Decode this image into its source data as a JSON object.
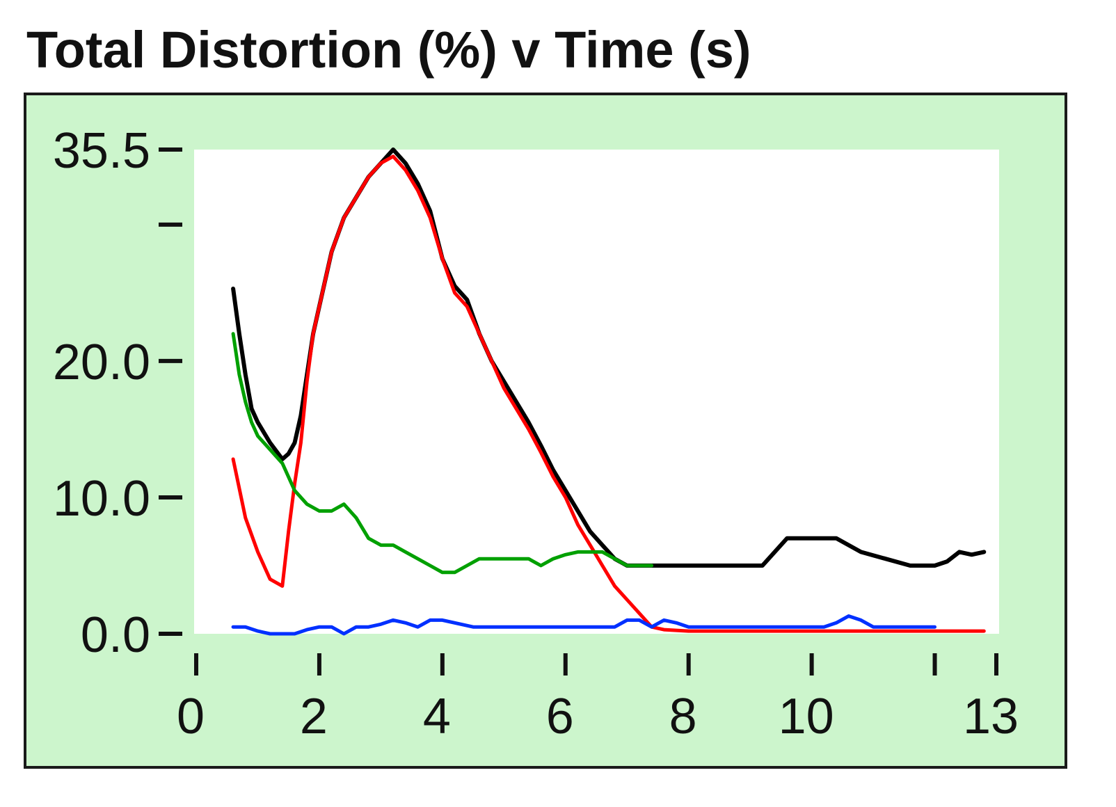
{
  "colors": {
    "panel_background": "#ccf5cc",
    "plot_background": "#ffffff",
    "axis": "#111111"
  },
  "chart_data": {
    "type": "line",
    "title": "Total Distortion (%) v Time (s)",
    "xlabel": "",
    "ylabel": "",
    "xlim": [
      0,
      13
    ],
    "ylim": [
      0,
      35.5
    ],
    "grid": false,
    "legend": "none",
    "x_ticks": [
      0,
      2,
      4,
      6,
      8,
      10,
      13
    ],
    "x_tick_labels": [
      "0",
      "2",
      "4",
      "6",
      "8",
      "10",
      "13"
    ],
    "x_minor_ticks": [
      12
    ],
    "y_ticks": [
      0,
      10,
      20,
      35.5
    ],
    "y_tick_labels": [
      "0.0",
      "10.0",
      "20.0",
      "35.5"
    ],
    "y_minor_ticks": [
      30
    ],
    "series": [
      {
        "color": "#000000",
        "x": [
          0.6,
          0.7,
          0.8,
          0.9,
          1.0,
          1.2,
          1.4,
          1.5,
          1.6,
          1.7,
          1.8,
          1.9,
          2.0,
          2.2,
          2.4,
          2.6,
          2.8,
          3.0,
          3.2,
          3.4,
          3.6,
          3.8,
          4.0,
          4.2,
          4.4,
          4.6,
          4.8,
          5.0,
          5.2,
          5.4,
          5.6,
          5.8,
          6.0,
          6.2,
          6.4,
          6.6,
          6.8,
          7.0,
          7.2,
          7.4,
          7.6,
          8.0,
          8.4,
          8.8,
          9.2,
          9.6,
          10.0,
          10.4,
          10.8,
          11.2,
          11.6,
          12.0,
          12.2,
          12.4,
          12.6,
          12.8
        ],
        "y": [
          25.3,
          22.0,
          19.0,
          16.5,
          15.5,
          14.0,
          12.8,
          13.2,
          14.0,
          16.0,
          19.0,
          22.0,
          24.0,
          28.0,
          30.5,
          32.0,
          33.5,
          34.5,
          35.5,
          34.5,
          33.0,
          31.0,
          27.5,
          25.5,
          24.5,
          22.0,
          20.0,
          18.5,
          17.0,
          15.5,
          13.8,
          12.0,
          10.5,
          9.0,
          7.5,
          6.5,
          5.5,
          5.0,
          5.0,
          5.0,
          5.0,
          5.0,
          5.0,
          5.0,
          5.0,
          7.0,
          7.0,
          7.0,
          6.0,
          5.5,
          5.0,
          5.0,
          5.3,
          6.0,
          5.8,
          6.0
        ]
      },
      {
        "color": "#ff0000",
        "x": [
          0.6,
          0.8,
          1.0,
          1.2,
          1.4,
          1.5,
          1.6,
          1.7,
          1.8,
          1.9,
          2.0,
          2.2,
          2.4,
          2.6,
          2.8,
          3.0,
          3.2,
          3.4,
          3.6,
          3.8,
          4.0,
          4.2,
          4.4,
          4.6,
          4.8,
          5.0,
          5.2,
          5.4,
          5.6,
          5.8,
          6.0,
          6.2,
          6.4,
          6.6,
          6.8,
          7.0,
          7.2,
          7.4,
          7.6,
          8.0,
          9.0,
          10.0,
          11.0,
          12.0,
          12.8
        ],
        "y": [
          12.8,
          8.5,
          6.0,
          4.0,
          3.5,
          7.5,
          11.0,
          14.0,
          18.5,
          22.0,
          24.0,
          28.0,
          30.5,
          32.0,
          33.5,
          34.5,
          35.0,
          34.0,
          32.5,
          30.5,
          27.5,
          25.0,
          24.0,
          22.0,
          20.0,
          18.0,
          16.5,
          15.0,
          13.3,
          11.5,
          10.0,
          8.0,
          6.5,
          5.0,
          3.5,
          2.5,
          1.5,
          0.5,
          0.3,
          0.2,
          0.2,
          0.2,
          0.2,
          0.2,
          0.2
        ]
      },
      {
        "color": "#00a000",
        "x": [
          0.6,
          0.7,
          0.8,
          0.9,
          1.0,
          1.2,
          1.4,
          1.6,
          1.8,
          2.0,
          2.2,
          2.4,
          2.6,
          2.8,
          3.0,
          3.2,
          3.4,
          3.6,
          3.8,
          4.0,
          4.2,
          4.4,
          4.6,
          4.8,
          5.0,
          5.2,
          5.4,
          5.6,
          5.8,
          6.0,
          6.2,
          6.4,
          6.6,
          6.8,
          7.0,
          7.2,
          7.4
        ],
        "y": [
          22.0,
          19.0,
          17.0,
          15.5,
          14.5,
          13.5,
          12.5,
          10.5,
          9.5,
          9.0,
          9.0,
          9.5,
          8.5,
          7.0,
          6.5,
          6.5,
          6.0,
          5.5,
          5.0,
          4.5,
          4.5,
          5.0,
          5.5,
          5.5,
          5.5,
          5.5,
          5.5,
          5.0,
          5.5,
          5.8,
          6.0,
          6.0,
          6.0,
          5.5,
          5.0,
          5.0,
          5.0
        ]
      },
      {
        "color": "#0030ff",
        "x": [
          0.6,
          0.8,
          1.0,
          1.2,
          1.4,
          1.6,
          1.8,
          2.0,
          2.2,
          2.4,
          2.6,
          2.8,
          3.0,
          3.2,
          3.4,
          3.6,
          3.8,
          4.0,
          4.5,
          5.0,
          5.5,
          6.0,
          6.5,
          6.8,
          7.0,
          7.2,
          7.4,
          7.6,
          7.8,
          8.0,
          8.4,
          8.8,
          9.2,
          9.6,
          10.0,
          10.2,
          10.4,
          10.6,
          10.8,
          11.0,
          11.4,
          11.8,
          12.0
        ],
        "y": [
          0.5,
          0.5,
          0.2,
          0.0,
          0.0,
          0.0,
          0.3,
          0.5,
          0.5,
          0.0,
          0.5,
          0.5,
          0.7,
          1.0,
          0.8,
          0.5,
          1.0,
          1.0,
          0.5,
          0.5,
          0.5,
          0.5,
          0.5,
          0.5,
          1.0,
          1.0,
          0.5,
          1.0,
          0.8,
          0.5,
          0.5,
          0.5,
          0.5,
          0.5,
          0.5,
          0.5,
          0.8,
          1.3,
          1.0,
          0.5,
          0.5,
          0.5,
          0.5
        ]
      }
    ]
  }
}
